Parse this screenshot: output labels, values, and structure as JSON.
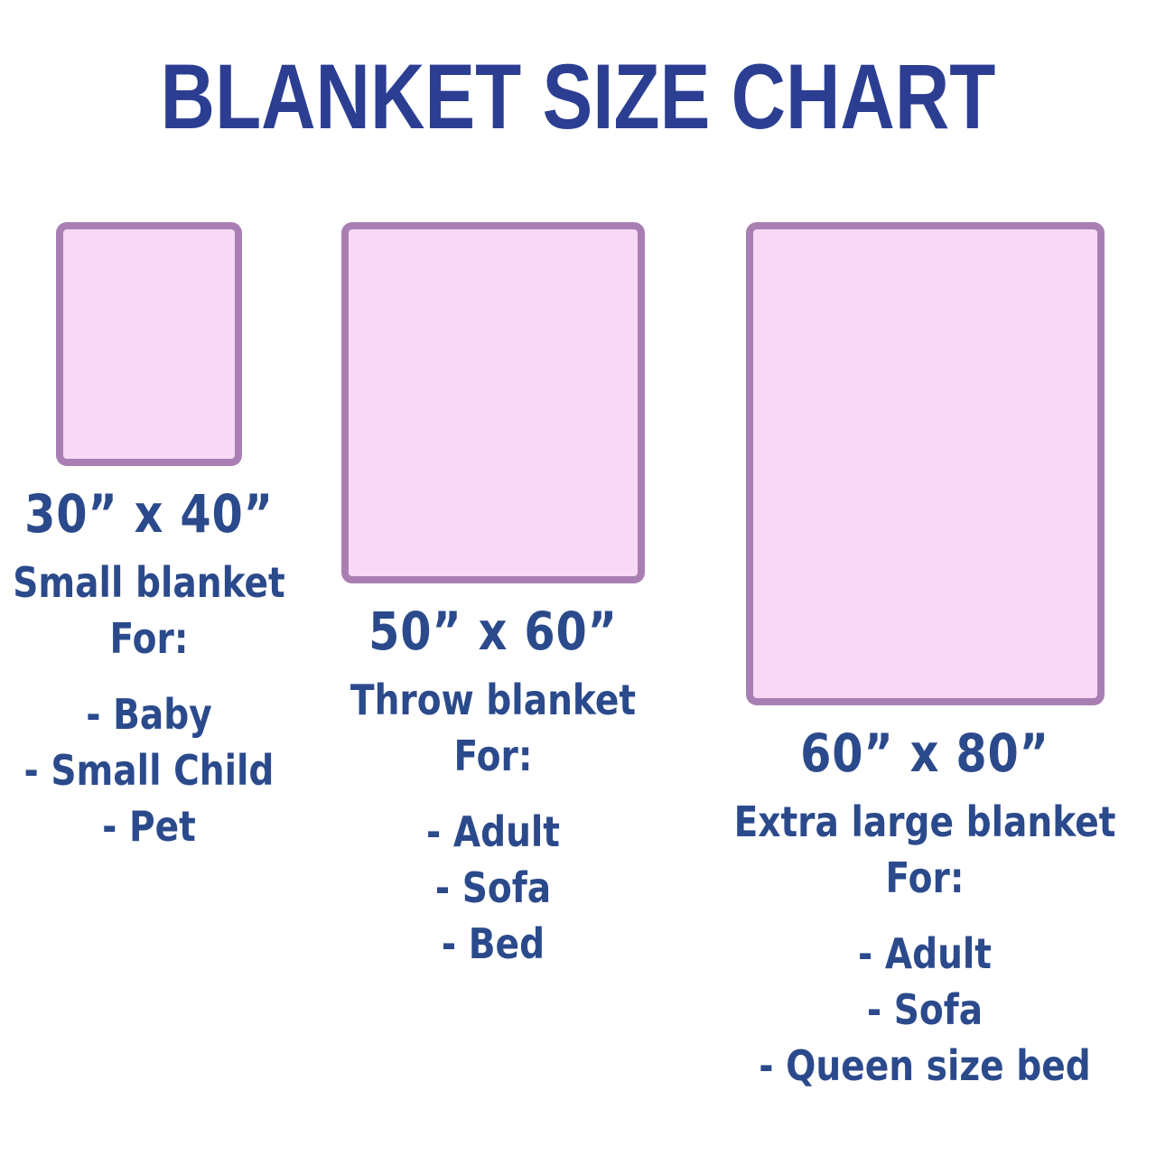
{
  "title": "BLANKET SIZE CHART",
  "colors": {
    "title_blue": "#2b3e92",
    "text_blue": "#2b4a8c",
    "blanket_fill": "#f9d8f6",
    "blanket_border": "#a97fb3"
  },
  "columns": [
    {
      "size": "30” x 40”",
      "type": "Small blanket",
      "for_label": "For:",
      "items": [
        "- Baby",
        "- Small Child",
        "- Pet"
      ]
    },
    {
      "size": "50” x 60”",
      "type": "Throw blanket",
      "for_label": "For:",
      "items": [
        "- Adult",
        "- Sofa",
        "- Bed"
      ]
    },
    {
      "size": "60” x 80”",
      "type": "Extra large blanket",
      "for_label": "For:",
      "items": [
        "- Adult",
        "- Sofa",
        "- Queen size bed"
      ]
    }
  ]
}
